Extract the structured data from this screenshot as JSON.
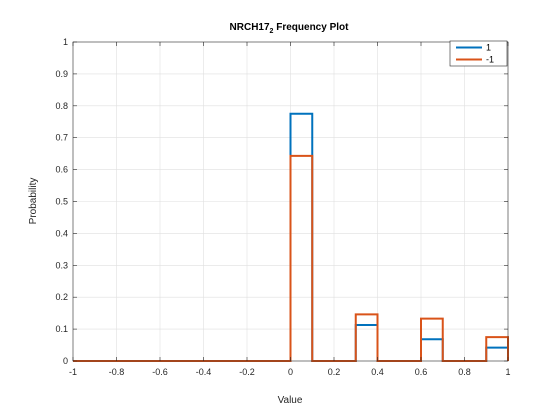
{
  "chart_data": {
    "type": "histogram-stairs",
    "title": "NRCH17",
    "title_subscript": "2",
    "title_suffix": " Frequency Plot",
    "xlabel": "Value",
    "ylabel": "Probability",
    "xlim": [
      -1,
      1
    ],
    "ylim": [
      0,
      1
    ],
    "grid": true,
    "legend_placement": "top-right",
    "x_ticks": [
      -1,
      -0.8,
      -0.6,
      -0.4,
      -0.2,
      0,
      0.2,
      0.4,
      0.6,
      0.8,
      1
    ],
    "x_tick_labels": [
      "-1",
      "-0.8",
      "-0.6",
      "-0.4",
      "-0.2",
      "0",
      "0.2",
      "0.4",
      "0.6",
      "0.8",
      "1"
    ],
    "y_ticks": [
      0,
      0.1,
      0.2,
      0.3,
      0.4,
      0.5,
      0.6,
      0.7,
      0.8,
      0.9,
      1
    ],
    "y_tick_labels": [
      "0",
      "0.1",
      "0.2",
      "0.3",
      "0.4",
      "0.5",
      "0.6",
      "0.7",
      "0.8",
      "0.9",
      "1"
    ],
    "bin_edges": [
      -1,
      0,
      0.1,
      0.3,
      0.4,
      0.6,
      0.7,
      0.9,
      1
    ],
    "series": [
      {
        "name": "1",
        "color": "#0072BD",
        "values": [
          0,
          0.775,
          0,
          0.113,
          0,
          0.068,
          0,
          0.042
        ]
      },
      {
        "name": "-1",
        "color": "#D95319",
        "values": [
          0,
          0.643,
          0,
          0.146,
          0,
          0.133,
          0,
          0.075
        ]
      }
    ]
  }
}
